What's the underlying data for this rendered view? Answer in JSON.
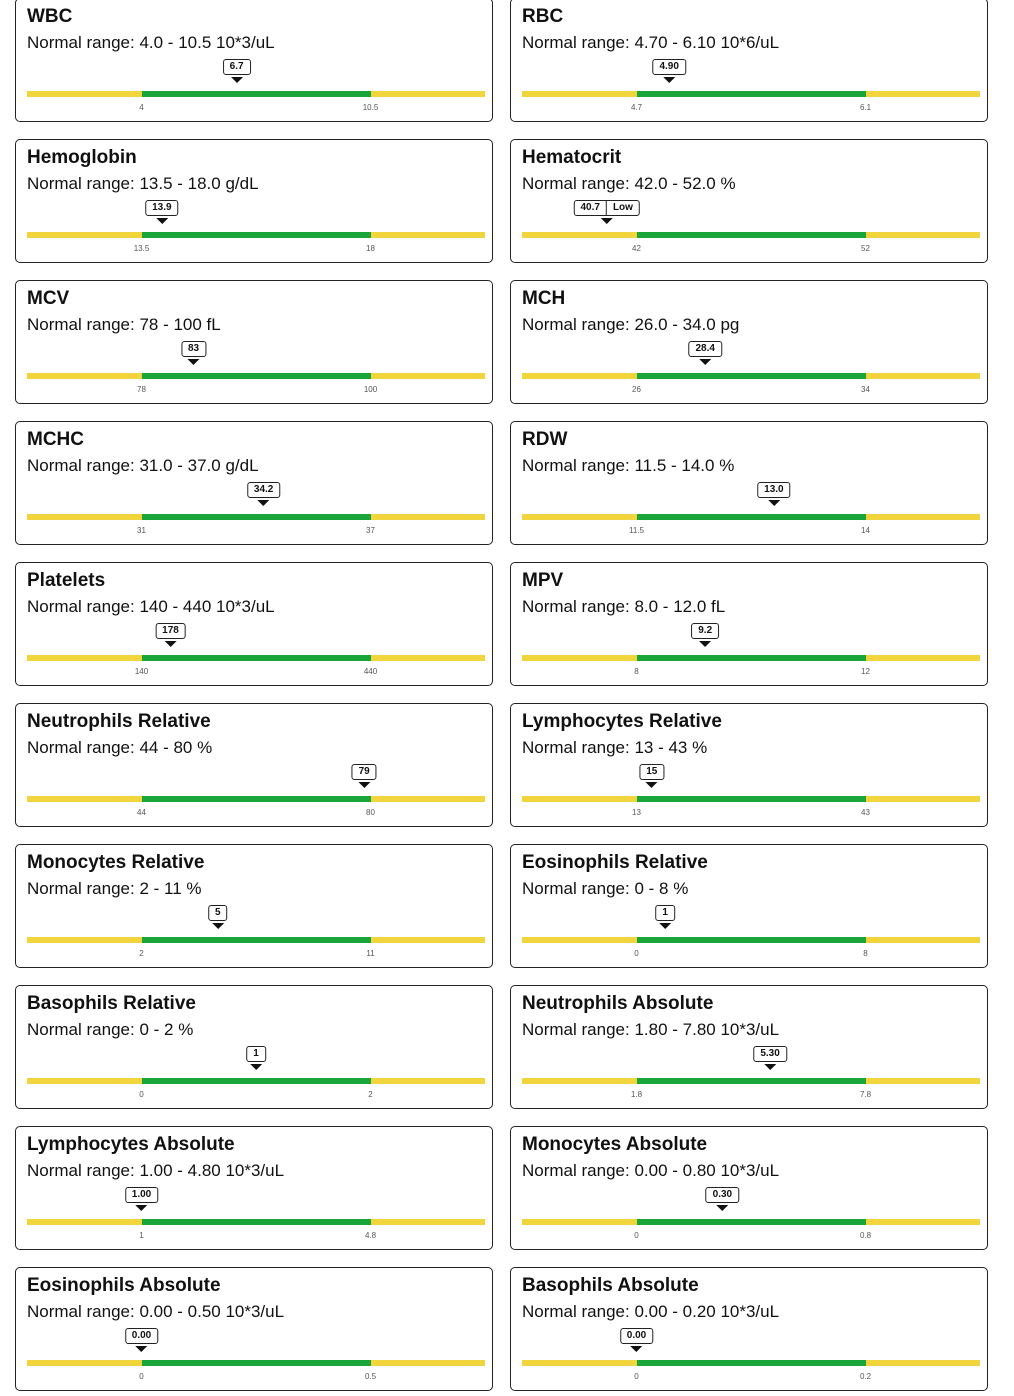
{
  "range_prefix": "Normal range:",
  "colors": {
    "out_of_range": "#f2d43c",
    "in_range": "#1aa53a"
  },
  "tests": [
    {
      "name": "WBC",
      "range_text": "4.0 - 10.5 10*3/uL",
      "low": 4,
      "high": 10.5,
      "low_label": "4",
      "high_label": "10.5",
      "value": 6.7,
      "value_label": "6.7",
      "flag": ""
    },
    {
      "name": "RBC",
      "range_text": "4.70 - 6.10 10*6/uL",
      "low": 4.7,
      "high": 6.1,
      "low_label": "4.7",
      "high_label": "6.1",
      "value": 4.9,
      "value_label": "4.90",
      "flag": ""
    },
    {
      "name": "Hemoglobin",
      "range_text": "13.5 - 18.0 g/dL",
      "low": 13.5,
      "high": 18,
      "low_label": "13.5",
      "high_label": "18",
      "value": 13.9,
      "value_label": "13.9",
      "flag": ""
    },
    {
      "name": "Hematocrit",
      "range_text": "42.0 - 52.0 %",
      "low": 42,
      "high": 52,
      "low_label": "42",
      "high_label": "52",
      "value": 40.7,
      "value_label": "40.7",
      "flag": "Low"
    },
    {
      "name": "MCV",
      "range_text": "78 - 100 fL",
      "low": 78,
      "high": 100,
      "low_label": "78",
      "high_label": "100",
      "value": 83,
      "value_label": "83",
      "flag": ""
    },
    {
      "name": "MCH",
      "range_text": "26.0 - 34.0 pg",
      "low": 26,
      "high": 34,
      "low_label": "26",
      "high_label": "34",
      "value": 28.4,
      "value_label": "28.4",
      "flag": ""
    },
    {
      "name": "MCHC",
      "range_text": "31.0 - 37.0 g/dL",
      "low": 31,
      "high": 37,
      "low_label": "31",
      "high_label": "37",
      "value": 34.2,
      "value_label": "34.2",
      "flag": ""
    },
    {
      "name": "RDW",
      "range_text": "11.5 - 14.0 %",
      "low": 11.5,
      "high": 14,
      "low_label": "11.5",
      "high_label": "14",
      "value": 13.0,
      "value_label": "13.0",
      "flag": ""
    },
    {
      "name": "Platelets",
      "range_text": "140 - 440 10*3/uL",
      "low": 140,
      "high": 440,
      "low_label": "140",
      "high_label": "440",
      "value": 178,
      "value_label": "178",
      "flag": ""
    },
    {
      "name": "MPV",
      "range_text": "8.0 - 12.0 fL",
      "low": 8,
      "high": 12,
      "low_label": "8",
      "high_label": "12",
      "value": 9.2,
      "value_label": "9.2",
      "flag": ""
    },
    {
      "name": "Neutrophils Relative",
      "range_text": "44 - 80 %",
      "low": 44,
      "high": 80,
      "low_label": "44",
      "high_label": "80",
      "value": 79,
      "value_label": "79",
      "flag": ""
    },
    {
      "name": "Lymphocytes Relative",
      "range_text": "13 - 43 %",
      "low": 13,
      "high": 43,
      "low_label": "13",
      "high_label": "43",
      "value": 15,
      "value_label": "15",
      "flag": ""
    },
    {
      "name": "Monocytes Relative",
      "range_text": "2 - 11 %",
      "low": 2,
      "high": 11,
      "low_label": "2",
      "high_label": "11",
      "value": 5,
      "value_label": "5",
      "flag": ""
    },
    {
      "name": "Eosinophils Relative",
      "range_text": "0 - 8 %",
      "low": 0,
      "high": 8,
      "low_label": "0",
      "high_label": "8",
      "value": 1,
      "value_label": "1",
      "flag": ""
    },
    {
      "name": "Basophils Relative",
      "range_text": "0 - 2 %",
      "low": 0,
      "high": 2,
      "low_label": "0",
      "high_label": "2",
      "value": 1,
      "value_label": "1",
      "flag": ""
    },
    {
      "name": "Neutrophils Absolute",
      "range_text": "1.80 - 7.80 10*3/uL",
      "low": 1.8,
      "high": 7.8,
      "low_label": "1.8",
      "high_label": "7.8",
      "value": 5.3,
      "value_label": "5.30",
      "flag": ""
    },
    {
      "name": "Lymphocytes Absolute",
      "range_text": "1.00 - 4.80 10*3/uL",
      "low": 1,
      "high": 4.8,
      "low_label": "1",
      "high_label": "4.8",
      "value": 1.0,
      "value_label": "1.00",
      "flag": ""
    },
    {
      "name": "Monocytes Absolute",
      "range_text": "0.00 - 0.80 10*3/uL",
      "low": 0,
      "high": 0.8,
      "low_label": "0",
      "high_label": "0.8",
      "value": 0.3,
      "value_label": "0.30",
      "flag": ""
    },
    {
      "name": "Eosinophils Absolute",
      "range_text": "0.00 - 0.50 10*3/uL",
      "low": 0,
      "high": 0.5,
      "low_label": "0",
      "high_label": "0.5",
      "value": 0.0,
      "value_label": "0.00",
      "flag": ""
    },
    {
      "name": "Basophils Absolute",
      "range_text": "0.00 - 0.20 10*3/uL",
      "low": 0,
      "high": 0.2,
      "low_label": "0",
      "high_label": "0.2",
      "value": 0.0,
      "value_label": "0.00",
      "flag": ""
    }
  ]
}
